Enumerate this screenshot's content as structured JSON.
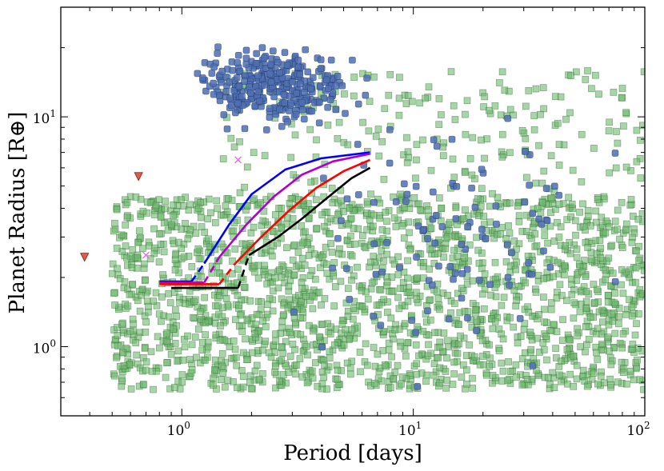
{
  "chart_data": {
    "type": "scatter",
    "xscale": "log",
    "yscale": "log",
    "xlabel": "Period [days]",
    "ylabel": "Planet Radius [R⊕]",
    "xlim": [
      0.3,
      100
    ],
    "ylim": [
      0.5,
      30
    ],
    "xticks": [
      {
        "value": 1,
        "base": "10",
        "exp": "0"
      },
      {
        "value": 10,
        "base": "10",
        "exp": "1"
      },
      {
        "value": 100,
        "base": "10",
        "exp": "2"
      }
    ],
    "yticks": [
      {
        "value": 1,
        "base": "10",
        "exp": "0"
      },
      {
        "value": 10,
        "base": "10",
        "exp": "1"
      }
    ],
    "colors": {
      "blue_points": "#4f6fb0",
      "green_points": "#6fb86f",
      "triangles": "#e05a50",
      "crosses": "#e070e0"
    },
    "series": [
      {
        "name": "blue-circles",
        "marker": "rounded-square",
        "color": "#4f6fb0",
        "count": 420,
        "clusters": [
          {
            "period_range": [
              1.0,
              6.5
            ],
            "radius_range": [
              8.5,
              22
            ],
            "weight": 0.75
          },
          {
            "period_range": [
              2.0,
              100
            ],
            "radius_range": [
              0.6,
              16
            ],
            "weight": 0.25
          }
        ]
      },
      {
        "name": "green-squares",
        "marker": "square",
        "color": "#6fb86f",
        "count": 2100,
        "clusters": [
          {
            "period_range": [
              0.5,
              100
            ],
            "radius_range": [
              0.65,
              4.5
            ],
            "weight": 0.9
          },
          {
            "period_range": [
              1.5,
              100
            ],
            "radius_range": [
              4.5,
              16
            ],
            "weight": 0.1
          }
        ]
      },
      {
        "name": "red-triangles",
        "marker": "triangle-down",
        "color": "#e05a50",
        "points": [
          {
            "x": 0.38,
            "y": 2.45
          },
          {
            "x": 0.65,
            "y": 5.5
          }
        ]
      },
      {
        "name": "magenta-crosses",
        "marker": "x",
        "color": "#e070e0",
        "points": [
          {
            "x": 0.7,
            "y": 2.5
          },
          {
            "x": 1.75,
            "y": 6.5
          }
        ]
      }
    ],
    "curves": [
      {
        "name": "blue-curve",
        "color": "#0000ff",
        "flat": [
          [
            0.8,
            1.92
          ],
          [
            1.1,
            1.92
          ]
        ],
        "dashed": [
          [
            1.1,
            1.92
          ],
          [
            1.25,
            2.3
          ]
        ],
        "solid": [
          [
            1.25,
            2.3
          ],
          [
            1.6,
            3.4
          ],
          [
            2.0,
            4.6
          ],
          [
            2.8,
            5.9
          ],
          [
            4.0,
            6.6
          ],
          [
            6.5,
            7.0
          ]
        ]
      },
      {
        "name": "purple-curve",
        "color": "#b000d0",
        "flat": [
          [
            0.8,
            1.9
          ],
          [
            1.25,
            1.9
          ]
        ],
        "dashed": [
          [
            1.25,
            1.9
          ],
          [
            1.45,
            2.45
          ]
        ],
        "solid": [
          [
            1.45,
            2.45
          ],
          [
            1.9,
            3.4
          ],
          [
            2.5,
            4.5
          ],
          [
            3.3,
            5.6
          ],
          [
            4.5,
            6.4
          ],
          [
            6.5,
            6.9
          ]
        ]
      },
      {
        "name": "red-curve",
        "color": "#ff0000",
        "flat": [
          [
            0.8,
            1.87
          ],
          [
            1.45,
            1.87
          ]
        ],
        "dashed": [
          [
            1.45,
            1.87
          ],
          [
            1.7,
            2.3
          ]
        ],
        "solid": [
          [
            1.7,
            2.3
          ],
          [
            2.2,
            3.0
          ],
          [
            2.9,
            3.9
          ],
          [
            3.8,
            4.9
          ],
          [
            5.0,
            5.8
          ],
          [
            6.5,
            6.5
          ]
        ]
      },
      {
        "name": "black-curve",
        "color": "#000000",
        "flat": [
          [
            0.9,
            1.8
          ],
          [
            1.75,
            1.8
          ]
        ],
        "dashed": [
          [
            1.75,
            1.8
          ],
          [
            1.95,
            2.5
          ]
        ],
        "solid": [
          [
            1.95,
            2.5
          ],
          [
            2.6,
            3.0
          ],
          [
            3.3,
            3.6
          ],
          [
            4.2,
            4.4
          ],
          [
            5.4,
            5.4
          ],
          [
            6.5,
            6.0
          ]
        ]
      }
    ]
  }
}
